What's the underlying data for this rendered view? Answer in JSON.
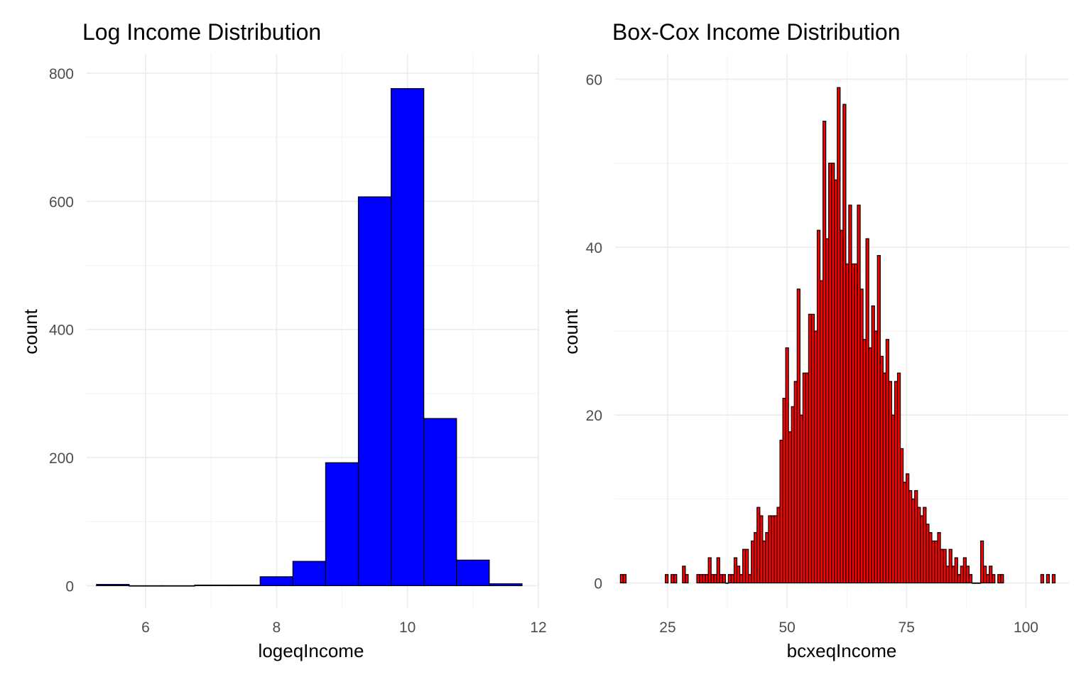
{
  "chart_data": [
    {
      "type": "bar",
      "title": "Log Income Distribution",
      "xlabel": "logeqIncome",
      "ylabel": "count",
      "bar_color": "#0000ff",
      "outline_color": "#000000",
      "grid": true,
      "xlim": [
        5.1,
        12.0
      ],
      "ylim": [
        -35,
        830
      ],
      "x_ticks": [
        6,
        8,
        10,
        12
      ],
      "y_ticks": [
        0,
        200,
        400,
        600,
        800
      ],
      "bin_width": 0.5,
      "bins": [
        {
          "x": 5.5,
          "count": 2
        },
        {
          "x": 6.0,
          "count": 0
        },
        {
          "x": 6.5,
          "count": 0
        },
        {
          "x": 7.0,
          "count": 1
        },
        {
          "x": 7.5,
          "count": 1
        },
        {
          "x": 8.0,
          "count": 14
        },
        {
          "x": 8.5,
          "count": 38
        },
        {
          "x": 9.0,
          "count": 192
        },
        {
          "x": 9.5,
          "count": 607
        },
        {
          "x": 10.0,
          "count": 776
        },
        {
          "x": 10.5,
          "count": 261
        },
        {
          "x": 11.0,
          "count": 40
        },
        {
          "x": 11.5,
          "count": 3
        }
      ]
    },
    {
      "type": "bar",
      "title": "Box-Cox Income Distribution",
      "xlabel": "bcxeqIncome",
      "ylabel": "count",
      "bar_color": "#ff0000",
      "outline_color": "#000000",
      "grid": true,
      "xlim": [
        14,
        109
      ],
      "ylim": [
        -3,
        63
      ],
      "x_ticks": [
        25,
        50,
        75,
        100
      ],
      "y_ticks": [
        0,
        20,
        40,
        60
      ],
      "bin_width": 0.6,
      "bins": [
        {
          "x": 15.4,
          "count": 1
        },
        {
          "x": 16.0,
          "count": 1
        },
        {
          "x": 24.8,
          "count": 1
        },
        {
          "x": 26.0,
          "count": 1
        },
        {
          "x": 26.6,
          "count": 1
        },
        {
          "x": 28.4,
          "count": 2
        },
        {
          "x": 29.0,
          "count": 1
        },
        {
          "x": 31.4,
          "count": 1
        },
        {
          "x": 32.0,
          "count": 1
        },
        {
          "x": 32.6,
          "count": 1
        },
        {
          "x": 33.2,
          "count": 1
        },
        {
          "x": 33.8,
          "count": 3
        },
        {
          "x": 34.4,
          "count": 1
        },
        {
          "x": 35.0,
          "count": 1
        },
        {
          "x": 35.6,
          "count": 3
        },
        {
          "x": 36.2,
          "count": 1
        },
        {
          "x": 36.8,
          "count": 1
        },
        {
          "x": 37.4,
          "count": 0
        },
        {
          "x": 38.0,
          "count": 1
        },
        {
          "x": 38.6,
          "count": 1
        },
        {
          "x": 39.2,
          "count": 3
        },
        {
          "x": 39.8,
          "count": 2
        },
        {
          "x": 40.4,
          "count": 1
        },
        {
          "x": 41.0,
          "count": 4
        },
        {
          "x": 41.6,
          "count": 4
        },
        {
          "x": 42.2,
          "count": 1
        },
        {
          "x": 42.8,
          "count": 5
        },
        {
          "x": 43.4,
          "count": 6
        },
        {
          "x": 44.0,
          "count": 9
        },
        {
          "x": 44.6,
          "count": 8
        },
        {
          "x": 45.2,
          "count": 5
        },
        {
          "x": 45.8,
          "count": 6
        },
        {
          "x": 46.4,
          "count": 8
        },
        {
          "x": 47.0,
          "count": 8
        },
        {
          "x": 47.6,
          "count": 8
        },
        {
          "x": 48.2,
          "count": 9
        },
        {
          "x": 48.8,
          "count": 17
        },
        {
          "x": 49.4,
          "count": 22
        },
        {
          "x": 50.0,
          "count": 28
        },
        {
          "x": 50.6,
          "count": 18
        },
        {
          "x": 51.2,
          "count": 21
        },
        {
          "x": 51.8,
          "count": 24
        },
        {
          "x": 52.4,
          "count": 35
        },
        {
          "x": 53.0,
          "count": 20
        },
        {
          "x": 53.6,
          "count": 25
        },
        {
          "x": 54.2,
          "count": 25
        },
        {
          "x": 54.8,
          "count": 32
        },
        {
          "x": 55.4,
          "count": 32
        },
        {
          "x": 56.0,
          "count": 30
        },
        {
          "x": 56.6,
          "count": 42
        },
        {
          "x": 57.2,
          "count": 36
        },
        {
          "x": 57.8,
          "count": 55
        },
        {
          "x": 58.4,
          "count": 41
        },
        {
          "x": 59.0,
          "count": 50
        },
        {
          "x": 59.6,
          "count": 50
        },
        {
          "x": 60.2,
          "count": 48
        },
        {
          "x": 60.8,
          "count": 59
        },
        {
          "x": 61.4,
          "count": 42
        },
        {
          "x": 62.0,
          "count": 57
        },
        {
          "x": 62.6,
          "count": 38
        },
        {
          "x": 63.2,
          "count": 45
        },
        {
          "x": 63.8,
          "count": 38
        },
        {
          "x": 64.4,
          "count": 38
        },
        {
          "x": 65.0,
          "count": 45
        },
        {
          "x": 65.6,
          "count": 35
        },
        {
          "x": 66.2,
          "count": 29
        },
        {
          "x": 66.8,
          "count": 41
        },
        {
          "x": 67.4,
          "count": 28
        },
        {
          "x": 68.0,
          "count": 33
        },
        {
          "x": 68.6,
          "count": 30
        },
        {
          "x": 69.2,
          "count": 39
        },
        {
          "x": 69.8,
          "count": 27
        },
        {
          "x": 70.4,
          "count": 25
        },
        {
          "x": 71.0,
          "count": 29
        },
        {
          "x": 71.6,
          "count": 24
        },
        {
          "x": 72.2,
          "count": 20
        },
        {
          "x": 72.8,
          "count": 24
        },
        {
          "x": 73.4,
          "count": 25
        },
        {
          "x": 74.0,
          "count": 16
        },
        {
          "x": 74.6,
          "count": 12
        },
        {
          "x": 75.2,
          "count": 13
        },
        {
          "x": 75.8,
          "count": 11
        },
        {
          "x": 76.4,
          "count": 10
        },
        {
          "x": 77.0,
          "count": 11
        },
        {
          "x": 77.6,
          "count": 9
        },
        {
          "x": 78.2,
          "count": 8
        },
        {
          "x": 78.8,
          "count": 9
        },
        {
          "x": 79.4,
          "count": 7
        },
        {
          "x": 80.0,
          "count": 6
        },
        {
          "x": 80.6,
          "count": 5
        },
        {
          "x": 81.2,
          "count": 5
        },
        {
          "x": 81.8,
          "count": 6
        },
        {
          "x": 82.4,
          "count": 4
        },
        {
          "x": 83.0,
          "count": 4
        },
        {
          "x": 83.6,
          "count": 2
        },
        {
          "x": 84.2,
          "count": 4
        },
        {
          "x": 84.8,
          "count": 2
        },
        {
          "x": 85.4,
          "count": 3
        },
        {
          "x": 86.0,
          "count": 1
        },
        {
          "x": 86.6,
          "count": 2
        },
        {
          "x": 87.2,
          "count": 3
        },
        {
          "x": 87.8,
          "count": 2
        },
        {
          "x": 88.4,
          "count": 1
        },
        {
          "x": 89.0,
          "count": 0
        },
        {
          "x": 89.6,
          "count": 0
        },
        {
          "x": 90.2,
          "count": 0
        },
        {
          "x": 90.8,
          "count": 5
        },
        {
          "x": 91.4,
          "count": 2
        },
        {
          "x": 92.0,
          "count": 1
        },
        {
          "x": 92.6,
          "count": 2
        },
        {
          "x": 93.2,
          "count": 1
        },
        {
          "x": 94.4,
          "count": 1
        },
        {
          "x": 95.0,
          "count": 1
        },
        {
          "x": 103.4,
          "count": 1
        },
        {
          "x": 104.6,
          "count": 1
        },
        {
          "x": 105.8,
          "count": 1
        }
      ]
    }
  ]
}
